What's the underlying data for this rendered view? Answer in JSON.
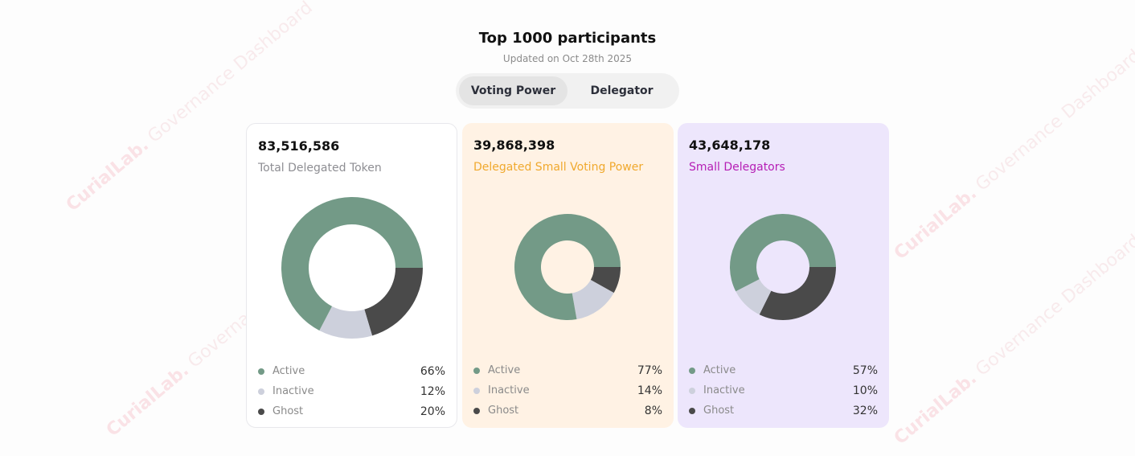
{
  "watermark": {
    "brand": "CurialLab.",
    "text": "Governance Dashboard"
  },
  "header": {
    "title": "Top 1000 participants",
    "subtitle": "Updated on Oct 28th 2025"
  },
  "tabs": [
    {
      "label": "Voting Power",
      "active": true
    },
    {
      "label": "Delegator",
      "active": false
    }
  ],
  "colors": {
    "active": "#739a87",
    "inactive": "#cdd0dc",
    "ghost": "#4a4a4a"
  },
  "cards": [
    {
      "value": "83,516,586",
      "label": "Total Delegated Token",
      "label_color": "#8e8e93",
      "bg": "#ffffff",
      "legend": [
        {
          "name": "Active",
          "pct": "66%"
        },
        {
          "name": "Inactive",
          "pct": "12%"
        },
        {
          "name": "Ghost",
          "pct": "20%"
        }
      ]
    },
    {
      "value": "39,868,398",
      "label": "Delegated Small Voting Power",
      "label_color": "#f0a92e",
      "bg": "#fff2e4",
      "legend": [
        {
          "name": "Active",
          "pct": "77%"
        },
        {
          "name": "Inactive",
          "pct": "14%"
        },
        {
          "name": "Ghost",
          "pct": "8%"
        }
      ]
    },
    {
      "value": "43,648,178",
      "label": "Small Delegators",
      "label_color": "#b51eb5",
      "bg": "#ede6fc",
      "legend": [
        {
          "name": "Active",
          "pct": "57%"
        },
        {
          "name": "Inactive",
          "pct": "10%"
        },
        {
          "name": "Ghost",
          "pct": "32%"
        }
      ]
    }
  ]
}
